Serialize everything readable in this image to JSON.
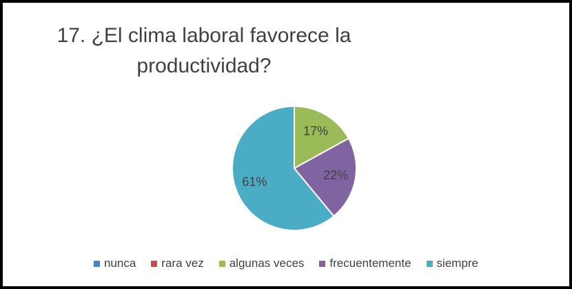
{
  "chart_data": {
    "type": "pie",
    "title": "17. ¿El clima laboral favorece la productividad?",
    "categories": [
      "nunca",
      "rara vez",
      "algunas veces",
      "frecuentemente",
      "siempre"
    ],
    "values": [
      0,
      0,
      17,
      22,
      61
    ],
    "value_labels": [
      null,
      null,
      "17%",
      "22%",
      "61%"
    ],
    "colors": [
      "#4f81bd",
      "#c0504d",
      "#9bbb59",
      "#8064a2",
      "#4bacc6"
    ],
    "legend": "bottom"
  }
}
